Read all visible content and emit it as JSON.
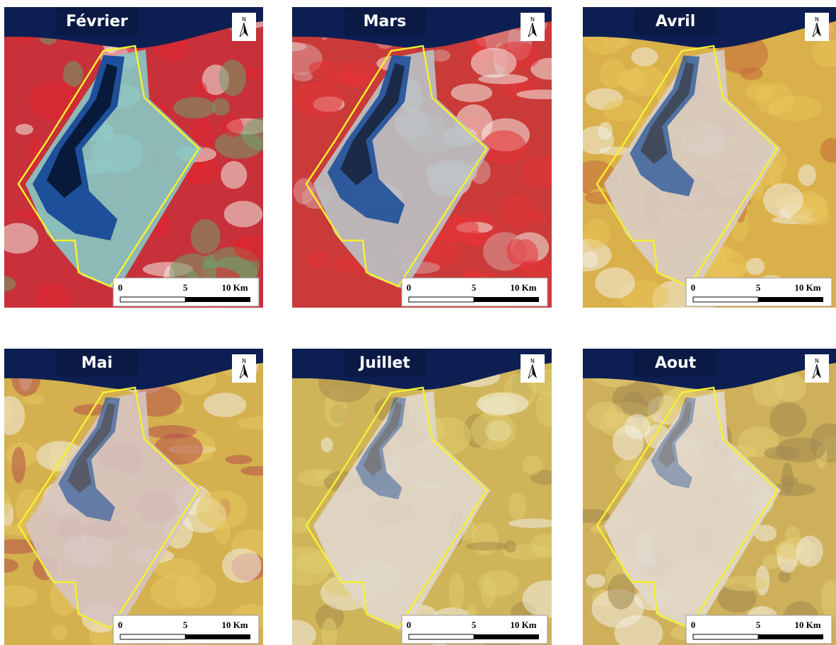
{
  "panels": [
    {
      "title": "Février",
      "north": "N",
      "scale": [
        "0",
        "5",
        "10 Km"
      ]
    },
    {
      "title": "Mars",
      "north": "N",
      "scale": [
        "0",
        "5",
        "10 Km"
      ]
    },
    {
      "title": "Avril",
      "north": "N",
      "scale": [
        "0",
        "5",
        "10 Km"
      ]
    },
    {
      "title": "Mai",
      "north": "N",
      "scale": [
        "0",
        "5",
        "10 Km"
      ]
    },
    {
      "title": "Juillet",
      "north": "N",
      "scale": [
        "0",
        "5",
        "10 Km"
      ]
    },
    {
      "title": "Aout",
      "north": "N",
      "scale": [
        "0",
        "5",
        "10 Km"
      ]
    }
  ]
}
